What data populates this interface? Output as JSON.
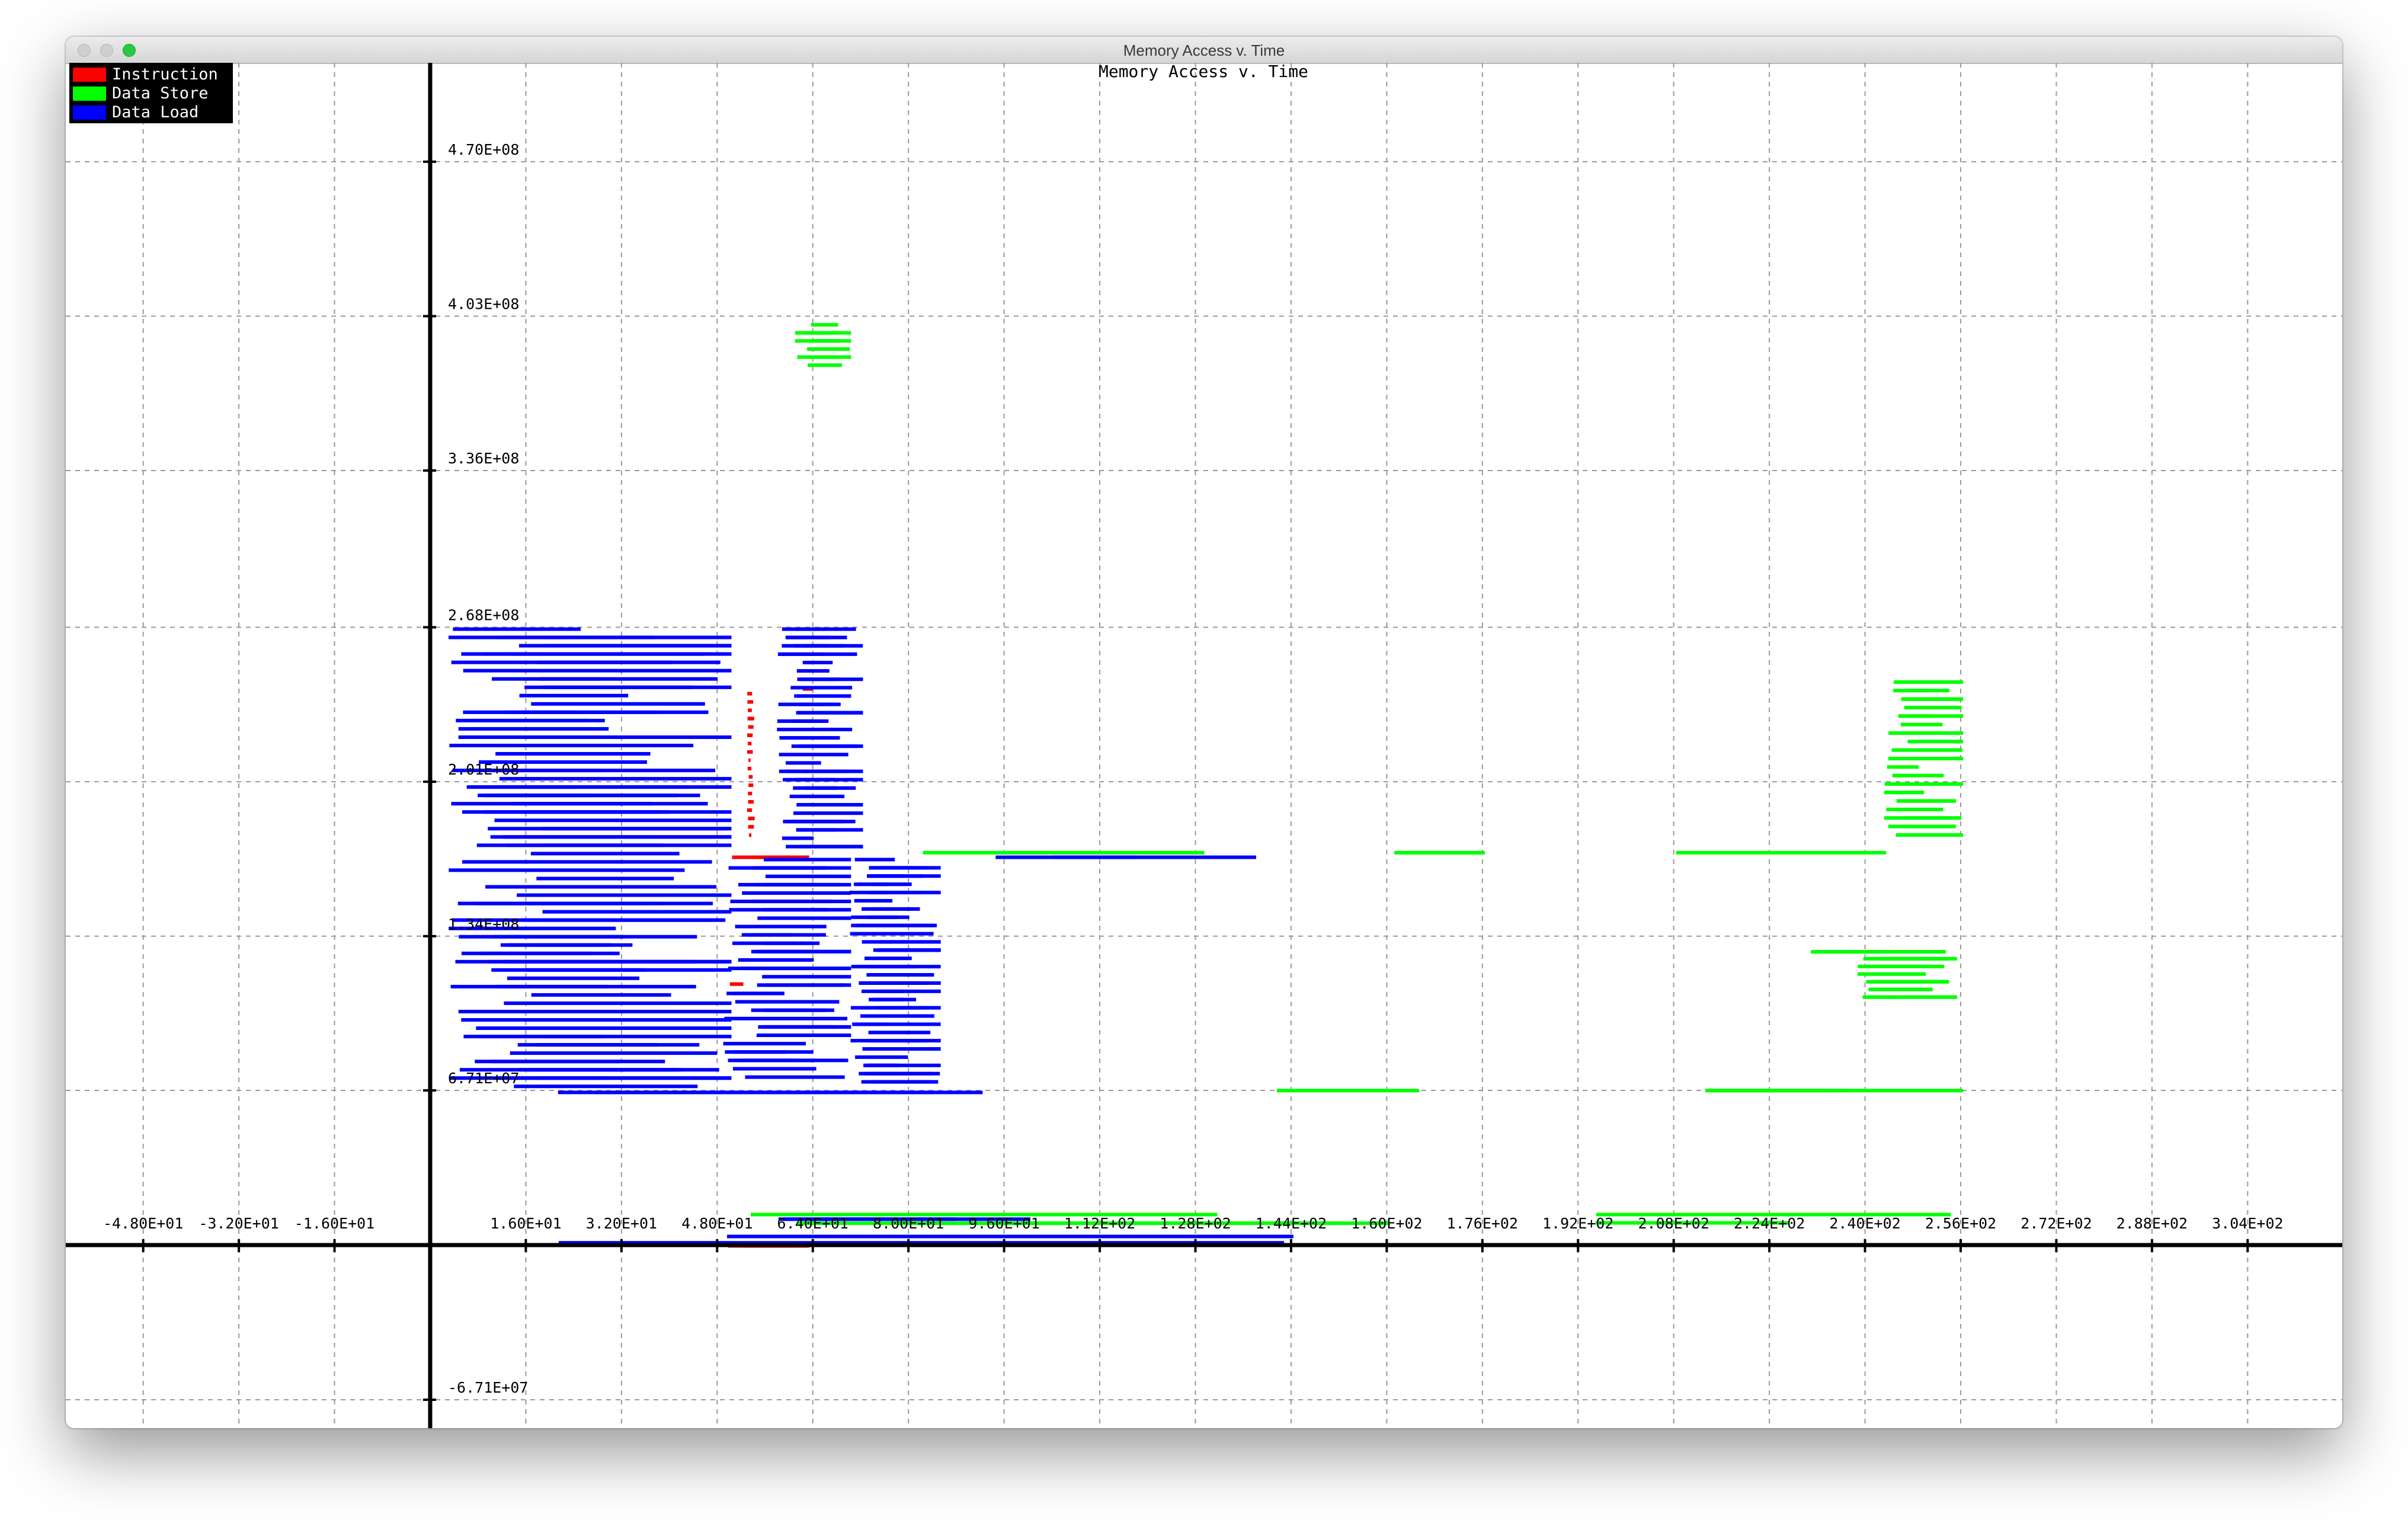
{
  "window": {
    "title": "Memory Access v. Time"
  },
  "colors": {
    "instruction": "#ff0000",
    "store": "#00ff00",
    "load": "#0000ff",
    "grid": "#9a9a9a",
    "axis": "#000000"
  },
  "chart_data": {
    "type": "scatter",
    "title": "Memory Access v. Time",
    "xlabel": "",
    "ylabel": "",
    "xlim": [
      -64,
      304
    ],
    "ylim": [
      -80000000.0,
      497000000.0
    ],
    "grid": true,
    "legend_position": "top-left",
    "x_ticks": [
      -48,
      -32,
      -16,
      0,
      16,
      32,
      48,
      64,
      80,
      96,
      112,
      128,
      144,
      160,
      176,
      192,
      208,
      224,
      240,
      256,
      272,
      288,
      304
    ],
    "x_tick_labels": [
      "-4.80E+01",
      "-3.20E+01",
      "-1.60E+01",
      "",
      "1.60E+01",
      "3.20E+01",
      "4.80E+01",
      "6.40E+01",
      "8.00E+01",
      "9.60E+01",
      "1.12E+02",
      "1.28E+02",
      "1.44E+02",
      "1.60E+02",
      "1.76E+02",
      "1.92E+02",
      "2.08E+02",
      "2.24E+02",
      "2.40E+02",
      "2.56E+02",
      "2.72E+02",
      "2.88E+02",
      "3.04E+02"
    ],
    "y_ticks": [
      -67100000.0,
      67100000.0,
      134000000.0,
      201000000.0,
      268000000.0,
      336000000.0,
      403000000.0,
      470000000.0
    ],
    "y_tick_labels": [
      "-6.71E+07",
      "6.71E+07",
      "1.34E+08",
      "2.01E+08",
      "2.68E+08",
      "3.36E+08",
      "4.03E+08",
      "4.70E+08"
    ],
    "series": [
      {
        "name": "Instruction",
        "color": "#ff0000",
        "clusters": [
          {
            "x": [
              49,
              63
            ],
            "y": [
              166000000.0,
              169000000.0
            ]
          },
          {
            "x": [
              49,
              63
            ],
            "y": [
              0.0,
              400000.0
            ]
          },
          {
            "x": [
              50,
              52
            ],
            "y": [
              110000000.0,
              114000000.0
            ]
          },
          {
            "x": [
              53,
              54
            ],
            "y": [
              175000000.0,
              240000000.0
            ]
          },
          {
            "x": [
              62,
              64
            ],
            "y": [
              240000000.0,
              242000000.0
            ]
          }
        ]
      },
      {
        "name": "Data Store",
        "color": "#00ff00",
        "clusters": [
          {
            "x": [
              61,
              70
            ],
            "y": [
              379000000.0,
              400000000.0
            ]
          },
          {
            "x": [
              63,
              144
            ],
            "y": [
              169000000.0,
              171000000.0
            ]
          },
          {
            "x": [
              49,
              160
            ],
            "y": [
              6500000.0,
              14000000.0
            ]
          },
          {
            "x": [
              192,
              256
            ],
            "y": [
              6800000.0,
              14000000.0
            ]
          },
          {
            "x": [
              133,
              165
            ],
            "y": [
              66200000.0,
              67800000.0
            ]
          },
          {
            "x": [
              208,
              256
            ],
            "y": [
              66200000.0,
              67800000.0
            ]
          },
          {
            "x": [
              160,
              176
            ],
            "y": [
              169000000.0,
              171000000.0
            ]
          },
          {
            "x": [
              192,
              256
            ],
            "y": [
              169000000.0,
              171000000.0
            ]
          },
          {
            "x": [
              238,
              255
            ],
            "y": [
              105000000.0,
              125000000.0
            ]
          },
          {
            "x": [
              243,
              256
            ],
            "y": [
              175000000.0,
              245000000.0
            ]
          },
          {
            "x": [
              226,
              254
            ],
            "y": [
              125000000.0,
              128000000.0
            ]
          }
        ]
      },
      {
        "name": "Data Load",
        "color": "#0000ff",
        "clusters": [
          {
            "x": [
              3,
              50
            ],
            "y": [
              66000000.0,
              268000000.0
            ]
          },
          {
            "x": [
              49,
              70
            ],
            "y": [
              70000000.0,
              168000000.0
            ]
          },
          {
            "x": [
              58,
              72
            ],
            "y": [
              170000000.0,
              268000000.0
            ]
          },
          {
            "x": [
              70,
              85
            ],
            "y": [
              68000000.0,
              168000000.0
            ]
          },
          {
            "x": [
              85,
              144
            ],
            "y": [
              167000000.0,
              169000000.0
            ]
          },
          {
            "x": [
              3,
              144
            ],
            "y": [
              -1000000.0,
              4500000.0
            ]
          },
          {
            "x": [
              49,
              100
            ],
            "y": [
              8000000.0,
              12000000.0
            ]
          },
          {
            "x": [
              3,
              92
            ],
            "y": [
              65500000.0,
              67000000.0
            ]
          }
        ]
      }
    ]
  }
}
